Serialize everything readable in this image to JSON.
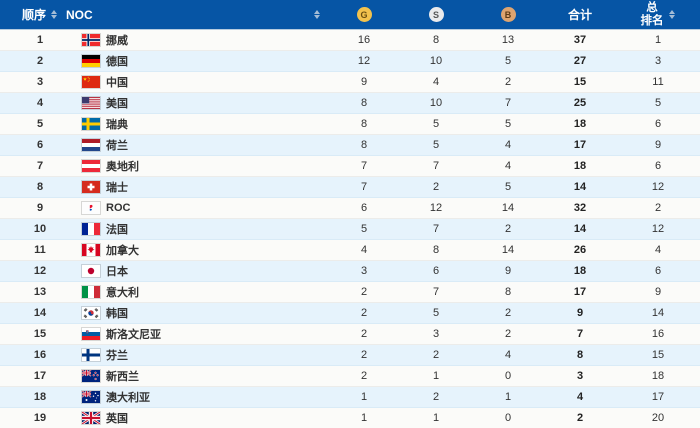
{
  "table": {
    "columns": {
      "rank_label": "顺序",
      "noc_label": "NOC",
      "gold_label": "G",
      "silver_label": "S",
      "bronze_label": "B",
      "total_label": "合计",
      "overall_label_line1": "总",
      "overall_label_line2": "排名",
      "sort_columns": [
        "rank",
        "noc",
        "overall"
      ]
    },
    "colors": {
      "header_bg": "#0655a5",
      "row_bg": "#fbfbf9",
      "row_alt_bg": "#e6f3fc",
      "gold": "#f2c24d",
      "silver": "#e9eaec",
      "bronze": "#dda470"
    },
    "rows": [
      {
        "rank": "1",
        "flag": "norway",
        "noc": "挪威",
        "g": "16",
        "s": "8",
        "b": "13",
        "total": "37",
        "overall": "1"
      },
      {
        "rank": "2",
        "flag": "germany",
        "noc": "德国",
        "g": "12",
        "s": "10",
        "b": "5",
        "total": "27",
        "overall": "3"
      },
      {
        "rank": "3",
        "flag": "china",
        "noc": "中国",
        "g": "9",
        "s": "4",
        "b": "2",
        "total": "15",
        "overall": "11"
      },
      {
        "rank": "4",
        "flag": "usa",
        "noc": "美国",
        "g": "8",
        "s": "10",
        "b": "7",
        "total": "25",
        "overall": "5"
      },
      {
        "rank": "5",
        "flag": "sweden",
        "noc": "瑞典",
        "g": "8",
        "s": "5",
        "b": "5",
        "total": "18",
        "overall": "6"
      },
      {
        "rank": "6",
        "flag": "netherlands",
        "noc": "荷兰",
        "g": "8",
        "s": "5",
        "b": "4",
        "total": "17",
        "overall": "9"
      },
      {
        "rank": "7",
        "flag": "austria",
        "noc": "奥地利",
        "g": "7",
        "s": "7",
        "b": "4",
        "total": "18",
        "overall": "6"
      },
      {
        "rank": "8",
        "flag": "switzerland",
        "noc": "瑞士",
        "g": "7",
        "s": "2",
        "b": "5",
        "total": "14",
        "overall": "12"
      },
      {
        "rank": "9",
        "flag": "roc",
        "noc": "ROC",
        "g": "6",
        "s": "12",
        "b": "14",
        "total": "32",
        "overall": "2"
      },
      {
        "rank": "10",
        "flag": "france",
        "noc": "法国",
        "g": "5",
        "s": "7",
        "b": "2",
        "total": "14",
        "overall": "12"
      },
      {
        "rank": "11",
        "flag": "canada",
        "noc": "加拿大",
        "g": "4",
        "s": "8",
        "b": "14",
        "total": "26",
        "overall": "4"
      },
      {
        "rank": "12",
        "flag": "japan",
        "noc": "日本",
        "g": "3",
        "s": "6",
        "b": "9",
        "total": "18",
        "overall": "6"
      },
      {
        "rank": "13",
        "flag": "italy",
        "noc": "意大利",
        "g": "2",
        "s": "7",
        "b": "8",
        "total": "17",
        "overall": "9"
      },
      {
        "rank": "14",
        "flag": "southkorea",
        "noc": "韩国",
        "g": "2",
        "s": "5",
        "b": "2",
        "total": "9",
        "overall": "14"
      },
      {
        "rank": "15",
        "flag": "slovenia",
        "noc": "斯洛文尼亚",
        "g": "2",
        "s": "3",
        "b": "2",
        "total": "7",
        "overall": "16"
      },
      {
        "rank": "16",
        "flag": "finland",
        "noc": "芬兰",
        "g": "2",
        "s": "2",
        "b": "4",
        "total": "8",
        "overall": "15"
      },
      {
        "rank": "17",
        "flag": "newzealand",
        "noc": "新西兰",
        "g": "2",
        "s": "1",
        "b": "0",
        "total": "3",
        "overall": "18"
      },
      {
        "rank": "18",
        "flag": "australia",
        "noc": "澳大利亚",
        "g": "1",
        "s": "2",
        "b": "1",
        "total": "4",
        "overall": "17"
      },
      {
        "rank": "19",
        "flag": "britain",
        "nooc_note": "",
        "noc": "英国",
        "g": "1",
        "s": "1",
        "b": "0",
        "total": "2",
        "overall": "20"
      }
    ]
  }
}
